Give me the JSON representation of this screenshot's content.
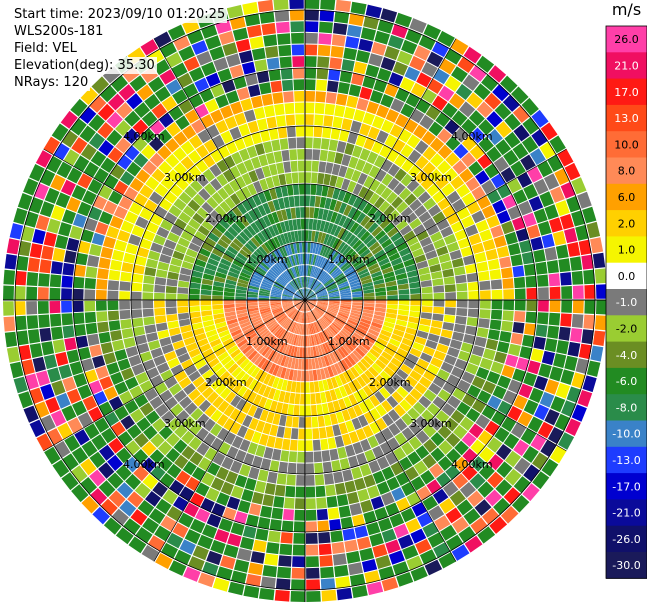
{
  "header": {
    "start_time": "Start time: 2023/09/10 01:20:25",
    "site": "WLS200s-181",
    "field": "Field: VEL",
    "elevation": "Elevation(deg): 35.30",
    "nrays": "NRays: 120"
  },
  "colorbar": {
    "title": "m/s",
    "bins": [
      {
        "label": "26.0",
        "color": "#ff3fa8"
      },
      {
        "label": "21.0",
        "color": "#f00f61"
      },
      {
        "label": "17.0",
        "color": "#ff1a14"
      },
      {
        "label": "13.0",
        "color": "#ff4a18"
      },
      {
        "label": "10.0",
        "color": "#ff6c36"
      },
      {
        "label": "8.0",
        "color": "#ff8a57"
      },
      {
        "label": "6.0",
        "color": "#ffa000"
      },
      {
        "label": "2.0",
        "color": "#ffd000"
      },
      {
        "label": "1.0",
        "color": "#f5f500"
      },
      {
        "label": "0.0",
        "color": "#ffffff"
      },
      {
        "label": "-1.0",
        "color": "#7a7a7a"
      },
      {
        "label": "-2.0",
        "color": "#9acd32"
      },
      {
        "label": "-4.0",
        "color": "#6b8e23"
      },
      {
        "label": "-6.0",
        "color": "#228b22"
      },
      {
        "label": "-8.0",
        "color": "#2a8c4a"
      },
      {
        "label": "-10.0",
        "color": "#3a82c8"
      },
      {
        "label": "-13.0",
        "color": "#1e3cff"
      },
      {
        "label": "-17.0",
        "color": "#0000d0"
      },
      {
        "label": "-21.0",
        "color": "#0a0a9a"
      },
      {
        "label": "-26.0",
        "color": "#10106a"
      },
      {
        "label": "-30.0",
        "color": "#1a1a5a"
      }
    ]
  },
  "chart_data": {
    "type": "heatmap",
    "description_field": "VEL",
    "units": "m/s",
    "rays": 120,
    "range_rings_km": [
      1.0,
      2.0,
      3.0,
      4.0
    ],
    "ring_labels": [
      "1.00km",
      "2.00km",
      "3.00km",
      "4.00km"
    ],
    "velocity_range": [
      -30.0,
      26.0
    ]
  }
}
